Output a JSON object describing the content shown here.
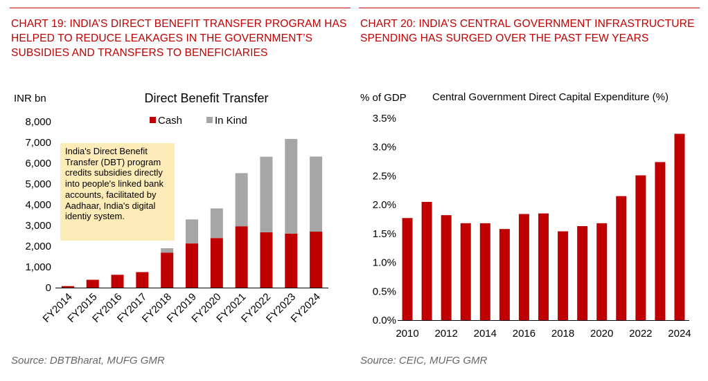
{
  "left": {
    "heading": "CHART 19: INDIA’S DIRECT BENEFIT TRANSFER PROGRAM HAS HELPED TO REDUCE LEAKAGES IN THE GOVERNMENT’S SUBSIDIES AND TRANSFERS TO BENEFICIARIES",
    "source": "Source: DBTBharat, MUFG GMR"
  },
  "right": {
    "heading": "CHART 20: INDIA’S CENTRAL GOVERNMENT INFRASTRUCTURE SPENDING HAS SURGED OVER THE PAST FEW YEARS",
    "source": "Source: CEIC, MUFG GMR"
  },
  "colors": {
    "red": "#c00000",
    "grey": "#a6a6a6",
    "note_bg": "#fdebb8"
  },
  "chart_data": [
    {
      "type": "bar",
      "stacked": true,
      "title": "Direct Benefit Transfer",
      "ylabel": "INR bn",
      "categories": [
        "FY2014",
        "FY2015",
        "FY2016",
        "FY2017",
        "FY2018",
        "FY2019",
        "FY2020",
        "FY2021",
        "FY2022",
        "FY2023",
        "FY2024"
      ],
      "series": [
        {
          "name": "Cash",
          "color": "#c00000",
          "values": [
            75,
            380,
            620,
            750,
            1690,
            2130,
            2390,
            2960,
            2670,
            2600,
            2700
          ]
        },
        {
          "name": "In Kind",
          "color": "#a6a6a6",
          "values": [
            0,
            0,
            0,
            0,
            210,
            1160,
            1430,
            2560,
            3640,
            4570,
            3620
          ]
        }
      ],
      "ylim": [
        0,
        8000
      ],
      "yticks": [
        "0",
        "1,000",
        "2,000",
        "3,000",
        "4,000",
        "5,000",
        "6,000",
        "7,000",
        "8,000"
      ],
      "ytick_values": [
        0,
        1000,
        2000,
        3000,
        4000,
        5000,
        6000,
        7000,
        8000
      ],
      "legend": "top",
      "annotation": "India's Direct Benefit Transfer (DBT) program credits subsidies directly into people's linked bank accounts, facilitated by Aadhaar, India's digital identiy system.",
      "grid": false
    },
    {
      "type": "bar",
      "title": "Central Government Direct Capital Expenditure (%)",
      "ylabel": "% of GDP",
      "x": [
        2010,
        2011,
        2012,
        2013,
        2014,
        2015,
        2016,
        2017,
        2018,
        2019,
        2020,
        2021,
        2022,
        2023,
        2024
      ],
      "values": [
        1.77,
        2.05,
        1.82,
        1.68,
        1.68,
        1.58,
        1.84,
        1.85,
        1.54,
        1.63,
        1.68,
        2.15,
        2.51,
        2.74,
        3.23
      ],
      "xtick_labels": [
        "2010",
        "2012",
        "2014",
        "2016",
        "2018",
        "2020",
        "2022",
        "2024"
      ],
      "xtick_values": [
        2010,
        2012,
        2014,
        2016,
        2018,
        2020,
        2022,
        2024
      ],
      "ylim": [
        0,
        3.5
      ],
      "yticks": [
        "0.0%",
        "0.5%",
        "1.0%",
        "1.5%",
        "2.0%",
        "2.5%",
        "3.0%",
        "3.5%"
      ],
      "ytick_values": [
        0,
        0.5,
        1,
        1.5,
        2,
        2.5,
        3,
        3.5
      ],
      "color": "#c00000",
      "grid": false
    }
  ]
}
